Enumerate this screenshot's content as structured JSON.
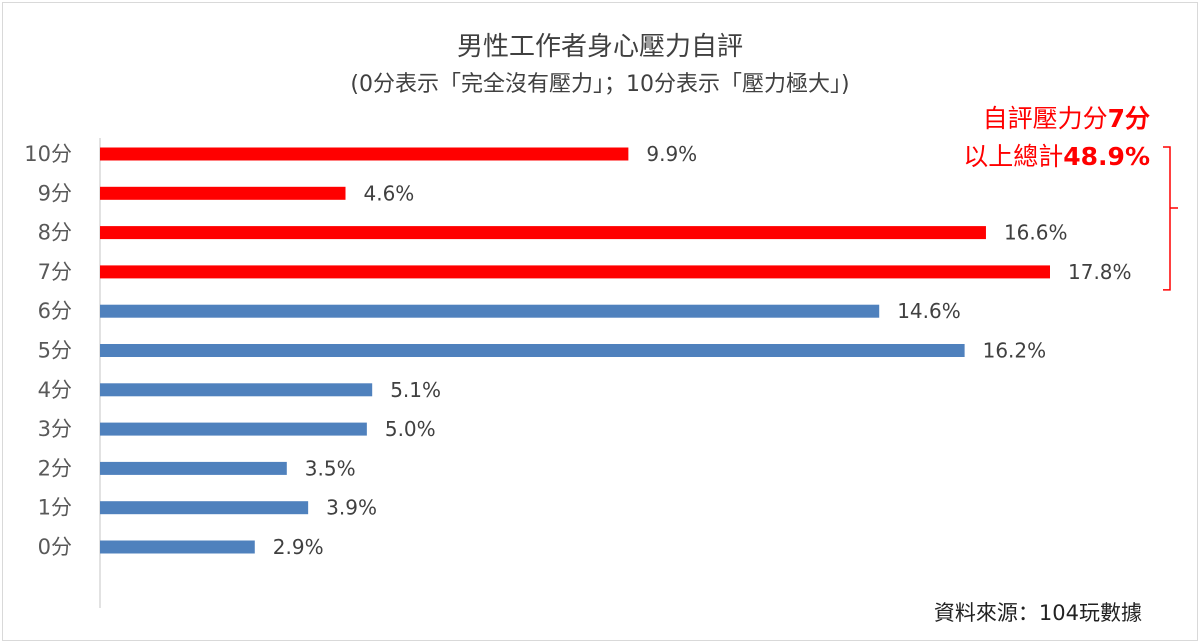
{
  "chart_data": {
    "type": "bar",
    "orientation": "horizontal",
    "title": "男性工作者身心壓力自評",
    "subtitle": "(0分表示「完全沒有壓力」；10分表示「壓力極大」)",
    "categories": [
      "10分",
      "9分",
      "8分",
      "7分",
      "6分",
      "5分",
      "4分",
      "3分",
      "2分",
      "1分",
      "0分"
    ],
    "values": [
      9.9,
      4.6,
      16.6,
      17.8,
      14.6,
      16.2,
      5.1,
      5.0,
      3.5,
      3.9,
      2.9
    ],
    "value_labels": [
      "9.9%",
      "4.6%",
      "16.6%",
      "17.8%",
      "14.6%",
      "16.2%",
      "5.1%",
      "5.0%",
      "3.5%",
      "3.9%",
      "2.9%"
    ],
    "colors": {
      "highlight": "#ff0000",
      "normal": "#4f81bd"
    },
    "highlight_categories": [
      "10分",
      "9分",
      "8分",
      "7分"
    ],
    "xlim": [
      0,
      20
    ],
    "grid": false,
    "legend": "none",
    "annotation": {
      "line1_text": "自評壓力分",
      "line1_bold": "7分",
      "line2_text": "以上總計",
      "line2_bold": "48.9%"
    },
    "source": "資料來源：104玩數據"
  }
}
